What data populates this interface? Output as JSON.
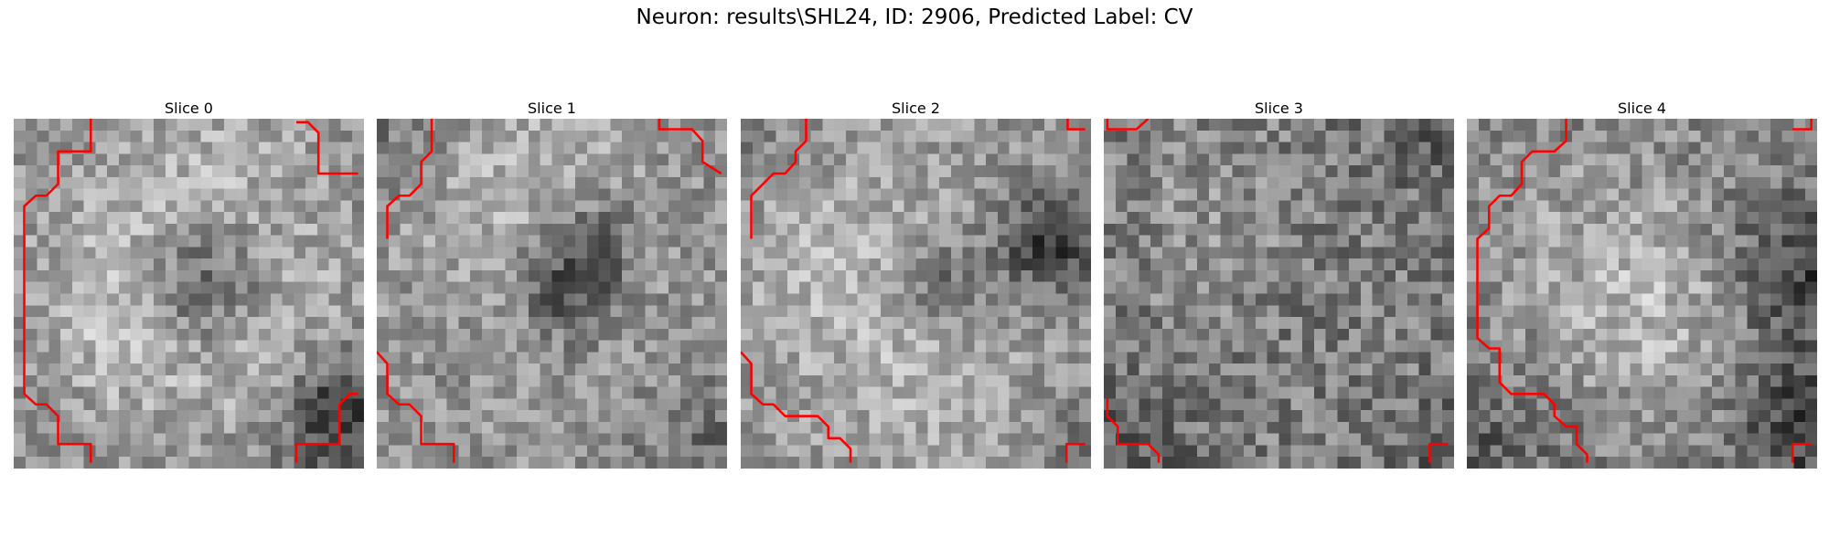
{
  "figure": {
    "title": "Neuron: results\\SHL24, ID: 2906, Predicted Label: CV",
    "contour_color": "#ff0000"
  },
  "slices": [
    {
      "title": "Slice 0"
    },
    {
      "title": "Slice 1"
    },
    {
      "title": "Slice 2"
    },
    {
      "title": "Slice 3"
    },
    {
      "title": "Slice 4"
    }
  ]
}
